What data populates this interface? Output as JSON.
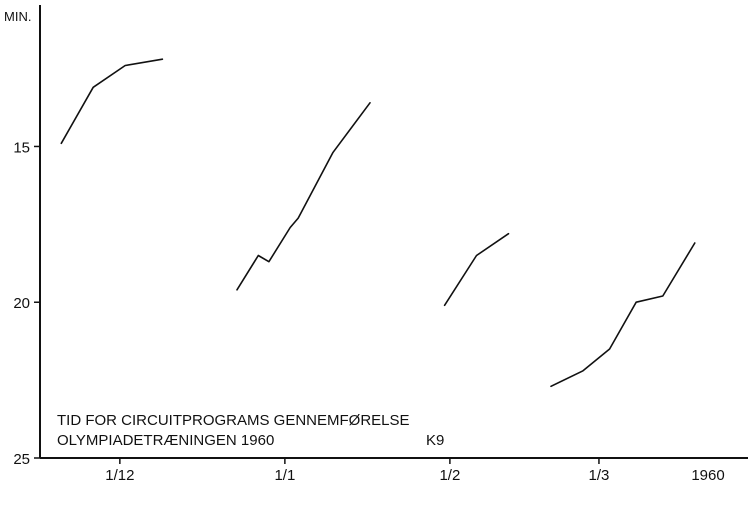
{
  "chart_data": {
    "type": "line",
    "title": "TID FOR CIRCUITPROGRAMS GENNEMFØRELSE",
    "subtitle": "OLYMPIADETRÆNINGEN 1960",
    "figure_code": "K9",
    "ylabel": "MIN.",
    "xlabel": "",
    "y_inverted": true,
    "ylim": [
      10.5,
      25
    ],
    "yticks": [
      15,
      20,
      25
    ],
    "grid": false,
    "x_ticks": [
      {
        "label": "1/12",
        "day": 15
      },
      {
        "label": "1/1",
        "day": 46
      },
      {
        "label": "1/2",
        "day": 77
      },
      {
        "label": "1/3",
        "day": 105
      }
    ],
    "year_label": "1960",
    "xlim": [
      0,
      133
    ],
    "series": [
      {
        "values": [
          {
            "x": 4,
            "y": 14.9
          },
          {
            "x": 10,
            "y": 13.1
          },
          {
            "x": 16,
            "y": 12.4
          },
          {
            "x": 23,
            "y": 12.2
          }
        ]
      },
      {
        "values": [
          {
            "x": 37,
            "y": 19.6
          },
          {
            "x": 41,
            "y": 18.5
          },
          {
            "x": 43,
            "y": 18.7
          },
          {
            "x": 47,
            "y": 17.6
          },
          {
            "x": 48.5,
            "y": 17.3
          },
          {
            "x": 55,
            "y": 15.2
          },
          {
            "x": 62,
            "y": 13.6
          }
        ]
      },
      {
        "values": [
          {
            "x": 76,
            "y": 20.1
          },
          {
            "x": 82,
            "y": 18.5
          },
          {
            "x": 88,
            "y": 17.8
          }
        ]
      },
      {
        "values": [
          {
            "x": 96,
            "y": 22.7
          },
          {
            "x": 102,
            "y": 22.2
          },
          {
            "x": 107,
            "y": 21.5
          },
          {
            "x": 112,
            "y": 20.0
          },
          {
            "x": 117,
            "y": 19.8
          },
          {
            "x": 123,
            "y": 18.1
          }
        ]
      }
    ]
  }
}
